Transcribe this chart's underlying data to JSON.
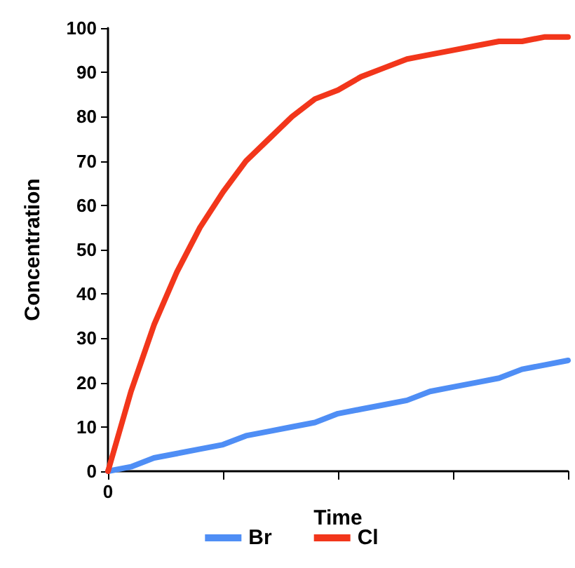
{
  "chart_data": {
    "type": "line",
    "xlabel": "Time",
    "ylabel": "Concentration",
    "categories": [
      "0",
      null,
      null,
      null,
      null,
      null,
      null,
      null,
      null,
      null,
      null,
      null,
      null,
      null,
      null,
      null,
      null,
      null,
      null,
      null,
      null
    ],
    "series": [
      {
        "name": "Br",
        "color": "#4f8ef5",
        "values": [
          0,
          1,
          3,
          4,
          5,
          6,
          8,
          9,
          10,
          11,
          13,
          14,
          15,
          16,
          18,
          19,
          20,
          21,
          23,
          24,
          25
        ]
      },
      {
        "name": "Cl",
        "color": "#f2361b",
        "values": [
          0,
          18,
          33,
          45,
          55,
          63,
          70,
          75,
          80,
          84,
          86,
          89,
          91,
          93,
          94,
          95,
          96,
          97,
          97,
          98,
          98
        ]
      }
    ],
    "ylim": [
      0,
      100
    ],
    "yticks": [
      0,
      10,
      20,
      30,
      40,
      50,
      60,
      70,
      80,
      90,
      100
    ],
    "grid": false,
    "legend": "bottom",
    "marker": "none",
    "line_style": "solid"
  }
}
